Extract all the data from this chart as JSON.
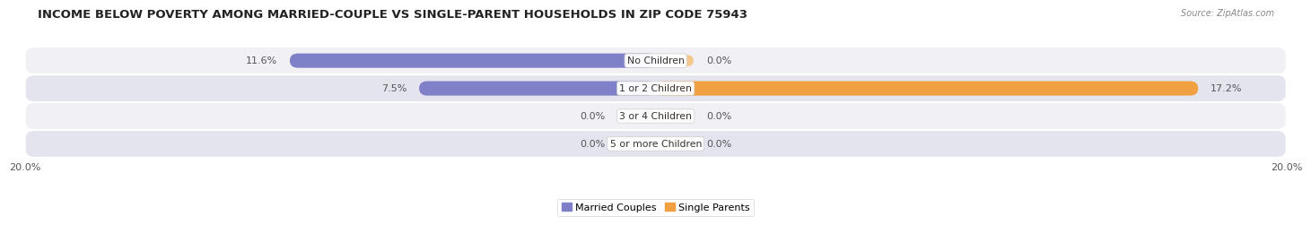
{
  "title": "INCOME BELOW POVERTY AMONG MARRIED-COUPLE VS SINGLE-PARENT HOUSEHOLDS IN ZIP CODE 75943",
  "source": "Source: ZipAtlas.com",
  "categories": [
    "No Children",
    "1 or 2 Children",
    "3 or 4 Children",
    "5 or more Children"
  ],
  "married_values": [
    11.6,
    7.5,
    0.0,
    0.0
  ],
  "single_values": [
    0.0,
    17.2,
    0.0,
    0.0
  ],
  "max_val": 20.0,
  "married_color": "#8080c8",
  "single_color": "#f0a040",
  "married_color_light": "#b8b8e0",
  "single_color_light": "#f5c890",
  "row_colors": [
    "#f0f0f5",
    "#e4e4ee"
  ],
  "bar_height": 0.52,
  "stub_val": 1.2,
  "title_fontsize": 9.5,
  "label_fontsize": 8,
  "category_fontsize": 7.8,
  "legend_fontsize": 8,
  "axis_label_fontsize": 8
}
